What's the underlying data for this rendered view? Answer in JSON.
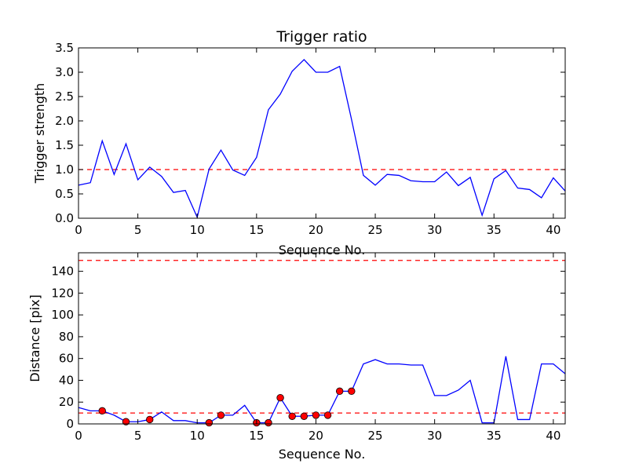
{
  "chart_data": [
    {
      "type": "line",
      "title": "Trigger ratio",
      "xlabel": "Sequence No.",
      "ylabel": "Trigger strength",
      "xlim": [
        0,
        41
      ],
      "ylim": [
        0,
        3.5
      ],
      "xticks": [
        0,
        5,
        10,
        15,
        20,
        25,
        30,
        35,
        40
      ],
      "yticks": [
        0.0,
        0.5,
        1.0,
        1.5,
        2.0,
        2.5,
        3.0,
        3.5
      ],
      "xtick_labels": [
        "0",
        "5",
        "10",
        "15",
        "20",
        "25",
        "30",
        "35",
        "40"
      ],
      "ytick_labels": [
        "0.0",
        "0.5",
        "1.0",
        "1.5",
        "2.0",
        "2.5",
        "3.0",
        "3.5"
      ],
      "line_color": "#0000ff",
      "ref_color": "#ff0000",
      "series": [
        {
          "x": [
            0,
            1,
            2,
            3,
            4,
            5,
            6,
            7,
            8,
            9,
            10,
            11,
            12,
            13,
            14,
            15,
            16,
            17,
            18,
            19,
            20,
            21,
            22,
            23,
            24,
            25,
            26,
            27,
            28,
            29,
            30,
            31,
            32,
            33,
            34,
            35,
            36,
            37,
            38,
            39,
            40,
            41
          ],
          "values": [
            0.68,
            0.73,
            1.59,
            0.9,
            1.53,
            0.79,
            1.05,
            0.86,
            0.53,
            0.57,
            0.02,
            1.01,
            1.4,
            0.99,
            0.88,
            1.25,
            2.23,
            2.55,
            3.02,
            3.26,
            3.0,
            3.0,
            3.12,
            2.03,
            0.88,
            0.68,
            0.9,
            0.88,
            0.77,
            0.75,
            0.75,
            0.95,
            0.67,
            0.84,
            0.06,
            0.81,
            0.98,
            0.62,
            0.59,
            0.42,
            0.83,
            0.56
          ]
        }
      ],
      "reference_lines": [
        1.0
      ]
    },
    {
      "type": "line",
      "title": "",
      "xlabel": "Sequence No.",
      "ylabel": "Distance [pix]",
      "xlim": [
        0,
        41
      ],
      "ylim": [
        0,
        157
      ],
      "xticks": [
        0,
        5,
        10,
        15,
        20,
        25,
        30,
        35,
        40
      ],
      "yticks": [
        0,
        20,
        40,
        60,
        80,
        100,
        120,
        140
      ],
      "xtick_labels": [
        "0",
        "5",
        "10",
        "15",
        "20",
        "25",
        "30",
        "35",
        "40"
      ],
      "ytick_labels": [
        "0",
        "20",
        "40",
        "60",
        "80",
        "100",
        "120",
        "140"
      ],
      "line_color": "#0000ff",
      "ref_color": "#ff0000",
      "marker_color": "#ff0000",
      "series": [
        {
          "x": [
            0,
            1,
            2,
            3,
            4,
            5,
            6,
            7,
            8,
            9,
            10,
            11,
            12,
            13,
            14,
            15,
            16,
            17,
            18,
            19,
            20,
            21,
            22,
            23,
            24,
            25,
            26,
            27,
            28,
            29,
            30,
            31,
            32,
            33,
            34,
            35,
            36,
            37,
            38,
            39,
            40,
            41
          ],
          "values": [
            15,
            12,
            12,
            8,
            2,
            2,
            4,
            11,
            3,
            3,
            1,
            1,
            8,
            8,
            17,
            1,
            1,
            24,
            7,
            7,
            8,
            8,
            30,
            30,
            55,
            59,
            55,
            55,
            54,
            54,
            26,
            26,
            31,
            40,
            1,
            1,
            62,
            4,
            4,
            55,
            55,
            46
          ]
        }
      ],
      "markers": {
        "x": [
          2,
          4,
          6,
          11,
          12,
          15,
          16,
          17,
          18,
          19,
          20,
          21,
          22,
          23
        ],
        "values": [
          12,
          2,
          4,
          1,
          8,
          1,
          1,
          24,
          7,
          7,
          8,
          8,
          30,
          30
        ]
      },
      "reference_lines": [
        10,
        150
      ]
    }
  ]
}
